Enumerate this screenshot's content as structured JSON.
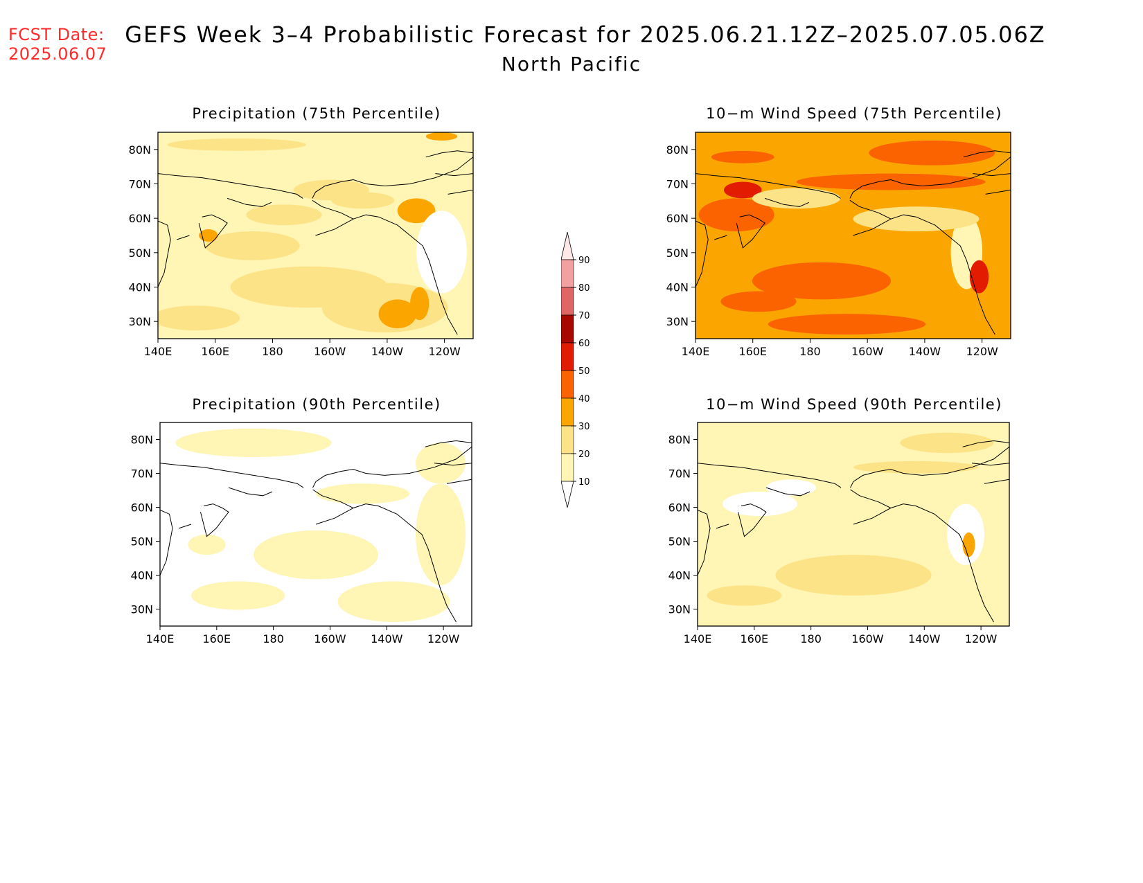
{
  "header": {
    "fcst_label": "FCST Date:",
    "fcst_date": "2025.06.07",
    "title": "GEFS Week 3–4 Probabilistic Forecast for 2025.06.21.12Z–2025.07.05.06Z",
    "subtitle": "North Pacific"
  },
  "axes": {
    "lat_ticks": [
      "80N",
      "70N",
      "60N",
      "50N",
      "40N",
      "30N"
    ],
    "lon_ticks": [
      "140E",
      "160E",
      "180",
      "160W",
      "140W",
      "120W"
    ]
  },
  "panels": [
    {
      "title": "Precipitation (75th Percentile)",
      "base_level": 10
    },
    {
      "title": "10−m Wind Speed (75th Percentile)",
      "base_level": 30
    },
    {
      "title": "Precipitation (90th Percentile)",
      "base_level": 0
    },
    {
      "title": "10−m Wind Speed (90th Percentile)",
      "base_level": 10
    }
  ],
  "colorbar": {
    "labels": [
      "90",
      "80",
      "70",
      "60",
      "50",
      "40",
      "30",
      "20",
      "10"
    ],
    "colors": {
      "lt10": "#ffffff",
      "10-20": "#fff5b4",
      "20-30": "#fde387",
      "30-40": "#fba600",
      "40-50": "#fb6300",
      "50-60": "#e21c00",
      "60-70": "#a80800",
      "70-80": "#e06666",
      "80-90": "#f2a0a0",
      "gt90": "#ffe8e8"
    }
  }
}
